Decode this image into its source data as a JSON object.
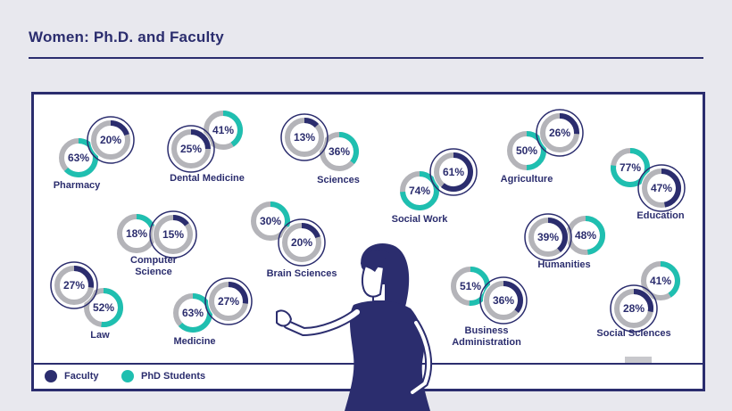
{
  "header": {
    "title": "Women: Ph.D. and Faculty"
  },
  "colors": {
    "faculty": "#2b2d6e",
    "phd": "#1fbfb0",
    "track": "#b4b4b9",
    "text": "#2b2d6e",
    "background": "#e8e8ee"
  },
  "legend": [
    {
      "label": "Faculty",
      "color": "#2b2d6e"
    },
    {
      "label": "PhD Students",
      "color": "#1fbfb0"
    }
  ],
  "chart_data": {
    "type": "pie",
    "series": [
      {
        "name": "Faculty",
        "unit": "%"
      },
      {
        "name": "PhD Students",
        "unit": "%"
      }
    ],
    "categories": [
      {
        "name": "Pharmacy",
        "label": "Pharmacy",
        "faculty": 20,
        "phd": 63
      },
      {
        "name": "Dental Medicine",
        "label": "Dental Medicine",
        "faculty": 25,
        "phd": 41
      },
      {
        "name": "Sciences",
        "label": "Sciences",
        "faculty": 13,
        "phd": 36
      },
      {
        "name": "Social Work",
        "label": "Social Work",
        "faculty": 61,
        "phd": 74
      },
      {
        "name": "Agriculture",
        "label": "Agriculture",
        "faculty": 26,
        "phd": 50
      },
      {
        "name": "Education",
        "label": "Education",
        "faculty": 47,
        "phd": 77
      },
      {
        "name": "Computer Science",
        "label": "Computer\nScience",
        "faculty": 15,
        "phd": 18
      },
      {
        "name": "Brain Sciences",
        "label": "Brain Sciences",
        "faculty": 20,
        "phd": 30
      },
      {
        "name": "Humanities",
        "label": "Humanities",
        "faculty": 39,
        "phd": 48
      },
      {
        "name": "Law",
        "label": "Law",
        "faculty": 27,
        "phd": 52
      },
      {
        "name": "Medicine",
        "label": "Medicine",
        "faculty": 27,
        "phd": 63
      },
      {
        "name": "Business Administration",
        "label": "Business\nAdministration",
        "faculty": 36,
        "phd": 51
      },
      {
        "name": "Social Sciences",
        "label": "Social Sciences",
        "faculty": 28,
        "phd": 41
      }
    ]
  }
}
